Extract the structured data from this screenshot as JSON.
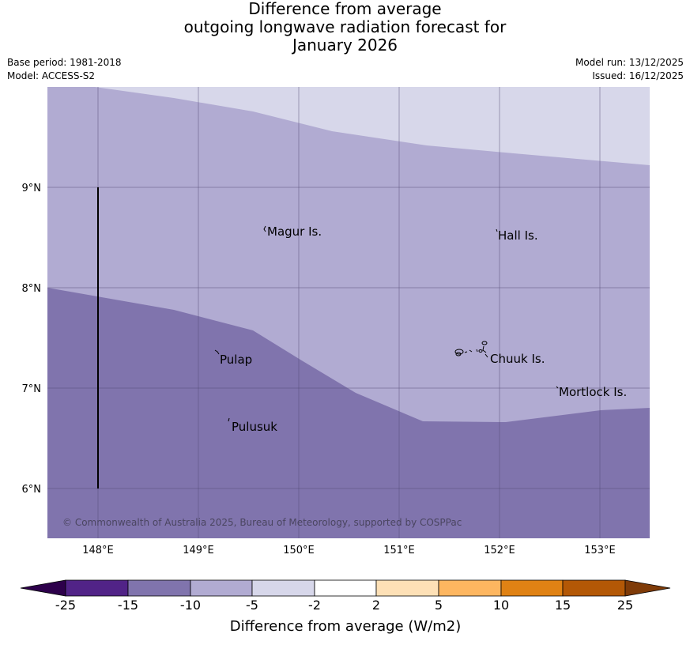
{
  "title": {
    "line1": "Difference from average",
    "line2": "outgoing longwave radiation forecast for",
    "line3": "January 2026"
  },
  "meta": {
    "base_period": "Base period: 1981-2018",
    "model": "Model: ACCESS-S2",
    "model_run": "Model run: 13/12/2025",
    "issued": "Issued: 16/12/2025"
  },
  "map": {
    "lat_labels": [
      "9°N",
      "8°N",
      "7°N",
      "6°N"
    ],
    "lon_labels": [
      "148°E",
      "149°E",
      "150°E",
      "151°E",
      "152°E",
      "153°E"
    ],
    "places": {
      "magur": "Magur Is.",
      "hall": "Hall Is.",
      "pulap": "Pulap",
      "chuuk": "Chuuk Is.",
      "mortlock": "Mortlock Is.",
      "pulusuk": "Pulusuk"
    },
    "copyright": "© Commonwealth of Australia 2025, Bureau of Meteorology, supported by COSPPac",
    "fill_colors": {
      "band_minus5_minus2": "#d7d7ea",
      "band_minus10_minus5": "#b1abd2",
      "band_minus15_minus10": "#8074ad"
    }
  },
  "colorbar": {
    "title": "Difference from average (W/m2)",
    "ticks": [
      "-25",
      "-15",
      "-10",
      "-5",
      "-2",
      "2",
      "5",
      "10",
      "15",
      "25"
    ],
    "colors": [
      "#512387",
      "#8074ad",
      "#b1abd2",
      "#d7d7ea",
      "#ffffff",
      "#fde0b6",
      "#fdb660",
      "#e08214",
      "#b35806"
    ],
    "under_color": "#2d004b",
    "over_color": "#7f3b08"
  }
}
